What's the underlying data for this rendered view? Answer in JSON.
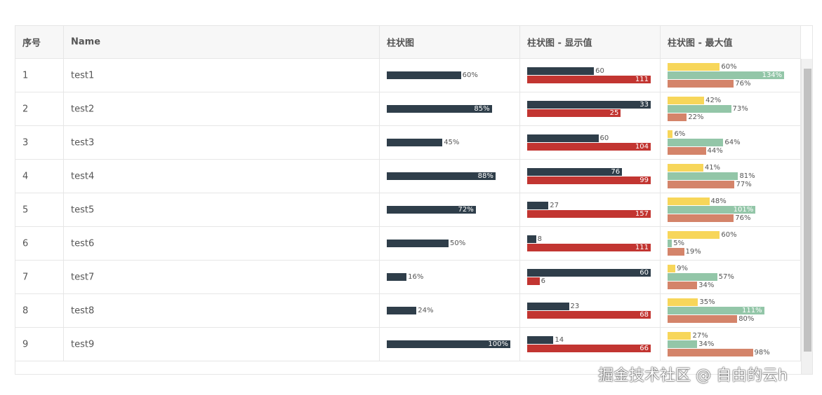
{
  "table": {
    "headers": [
      "序号",
      "Name",
      "柱状图",
      "柱状图 - 显示值",
      "柱状图 - 最大值"
    ],
    "rows": [
      {
        "id": 1,
        "name": "test1",
        "bar": {
          "value": 60,
          "label": "60%"
        },
        "shown": [
          60,
          111
        ],
        "max": [
          {
            "value": 60,
            "label": "60%"
          },
          {
            "value": 134,
            "label": "134%"
          },
          {
            "value": 76,
            "label": "76%"
          }
        ]
      },
      {
        "id": 2,
        "name": "test2",
        "bar": {
          "value": 85,
          "label": "85%"
        },
        "shown": [
          33,
          25
        ],
        "max": [
          {
            "value": 42,
            "label": "42%"
          },
          {
            "value": 73,
            "label": "73%"
          },
          {
            "value": 22,
            "label": "22%"
          }
        ]
      },
      {
        "id": 3,
        "name": "test3",
        "bar": {
          "value": 45,
          "label": "45%"
        },
        "shown": [
          60,
          104
        ],
        "max": [
          {
            "value": 6,
            "label": "6%"
          },
          {
            "value": 64,
            "label": "64%"
          },
          {
            "value": 44,
            "label": "44%"
          }
        ]
      },
      {
        "id": 4,
        "name": "test4",
        "bar": {
          "value": 88,
          "label": "88%"
        },
        "shown": [
          76,
          99
        ],
        "max": [
          {
            "value": 41,
            "label": "41%"
          },
          {
            "value": 81,
            "label": "81%"
          },
          {
            "value": 77,
            "label": "77%"
          }
        ]
      },
      {
        "id": 5,
        "name": "test5",
        "bar": {
          "value": 72,
          "label": "72%"
        },
        "shown": [
          27,
          157
        ],
        "max": [
          {
            "value": 48,
            "label": "48%"
          },
          {
            "value": 101,
            "label": "101%"
          },
          {
            "value": 76,
            "label": "76%"
          }
        ]
      },
      {
        "id": 6,
        "name": "test6",
        "bar": {
          "value": 50,
          "label": "50%"
        },
        "shown": [
          8,
          111
        ],
        "max": [
          {
            "value": 60,
            "label": "60%"
          },
          {
            "value": 5,
            "label": "5%"
          },
          {
            "value": 19,
            "label": "19%"
          }
        ]
      },
      {
        "id": 7,
        "name": "test7",
        "bar": {
          "value": 16,
          "label": "16%"
        },
        "shown": [
          60,
          6
        ],
        "max": [
          {
            "value": 9,
            "label": "9%"
          },
          {
            "value": 57,
            "label": "57%"
          },
          {
            "value": 34,
            "label": "34%"
          }
        ]
      },
      {
        "id": 8,
        "name": "test8",
        "bar": {
          "value": 24,
          "label": "24%"
        },
        "shown": [
          23,
          68
        ],
        "max": [
          {
            "value": 35,
            "label": "35%"
          },
          {
            "value": 111,
            "label": "111%"
          },
          {
            "value": 80,
            "label": "80%"
          }
        ]
      },
      {
        "id": 9,
        "name": "test9",
        "bar": {
          "value": 100,
          "label": "100%"
        },
        "shown": [
          14,
          66
        ],
        "max": [
          {
            "value": 27,
            "label": "27%"
          },
          {
            "value": 34,
            "label": "34%"
          },
          {
            "value": 98,
            "label": "98%"
          }
        ]
      }
    ]
  },
  "watermark": "掘金技术社区 @ 自由的云h"
}
